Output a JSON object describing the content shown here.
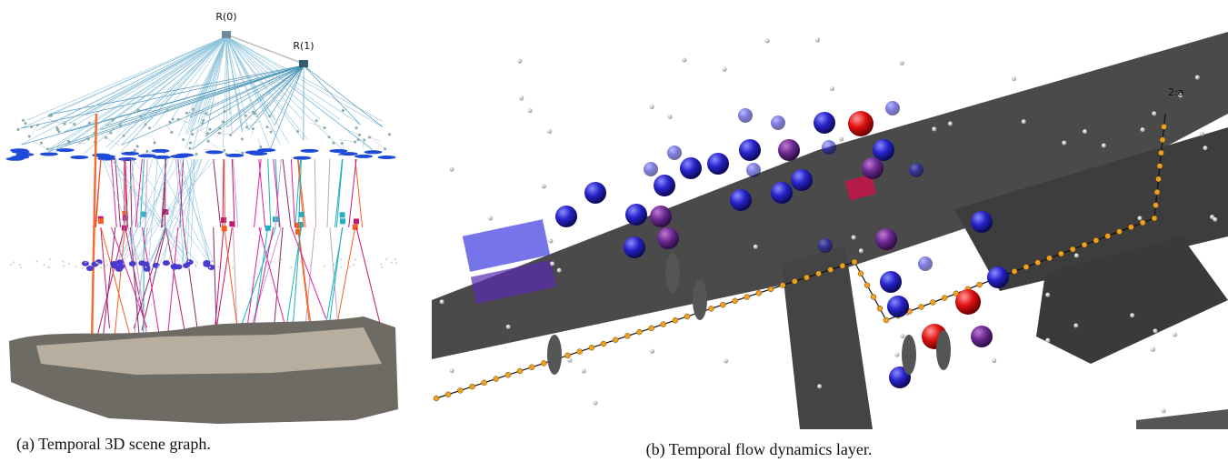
{
  "figure": {
    "panels": [
      {
        "labels": [
          "R(0)",
          "R(1)"
        ],
        "caption": "(a) Temporal 3D scene graph."
      },
      {
        "labels": [
          "2:a"
        ],
        "caption": "(b) Temporal flow dynamics layer."
      }
    ]
  }
}
